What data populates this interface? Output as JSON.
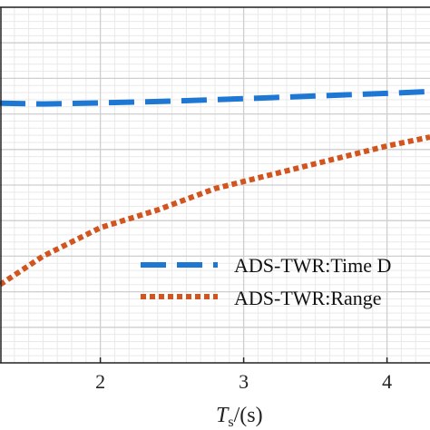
{
  "chart_data": {
    "type": "line",
    "title": "",
    "xlabel": {
      "main": "T",
      "sub": "s",
      "unit": "/(s)"
    },
    "ylabel": "",
    "x_ticks": [
      "2",
      "3",
      "4"
    ],
    "xlim": [
      1.3,
      4.3
    ],
    "ylim": [
      0,
      1
    ],
    "grid": true,
    "minor_grid": true,
    "legend_position": "lower-right",
    "series": [
      {
        "name": "ADS-TWR:Time D",
        "color": "#1f77d4",
        "style": "dashed",
        "x": [
          1.3,
          1.6,
          2.0,
          2.4,
          2.8,
          3.2,
          3.6,
          4.0,
          4.3
        ],
        "y": [
          0.73,
          0.728,
          0.731,
          0.735,
          0.74,
          0.746,
          0.752,
          0.758,
          0.763
        ]
      },
      {
        "name": "ADS-TWR:Range",
        "color": "#d2541f",
        "style": "dotted",
        "x": [
          1.3,
          1.6,
          2.0,
          2.4,
          2.8,
          3.2,
          3.6,
          4.0,
          4.3
        ],
        "y": [
          0.22,
          0.3,
          0.38,
          0.43,
          0.49,
          0.53,
          0.57,
          0.61,
          0.635
        ]
      }
    ]
  }
}
